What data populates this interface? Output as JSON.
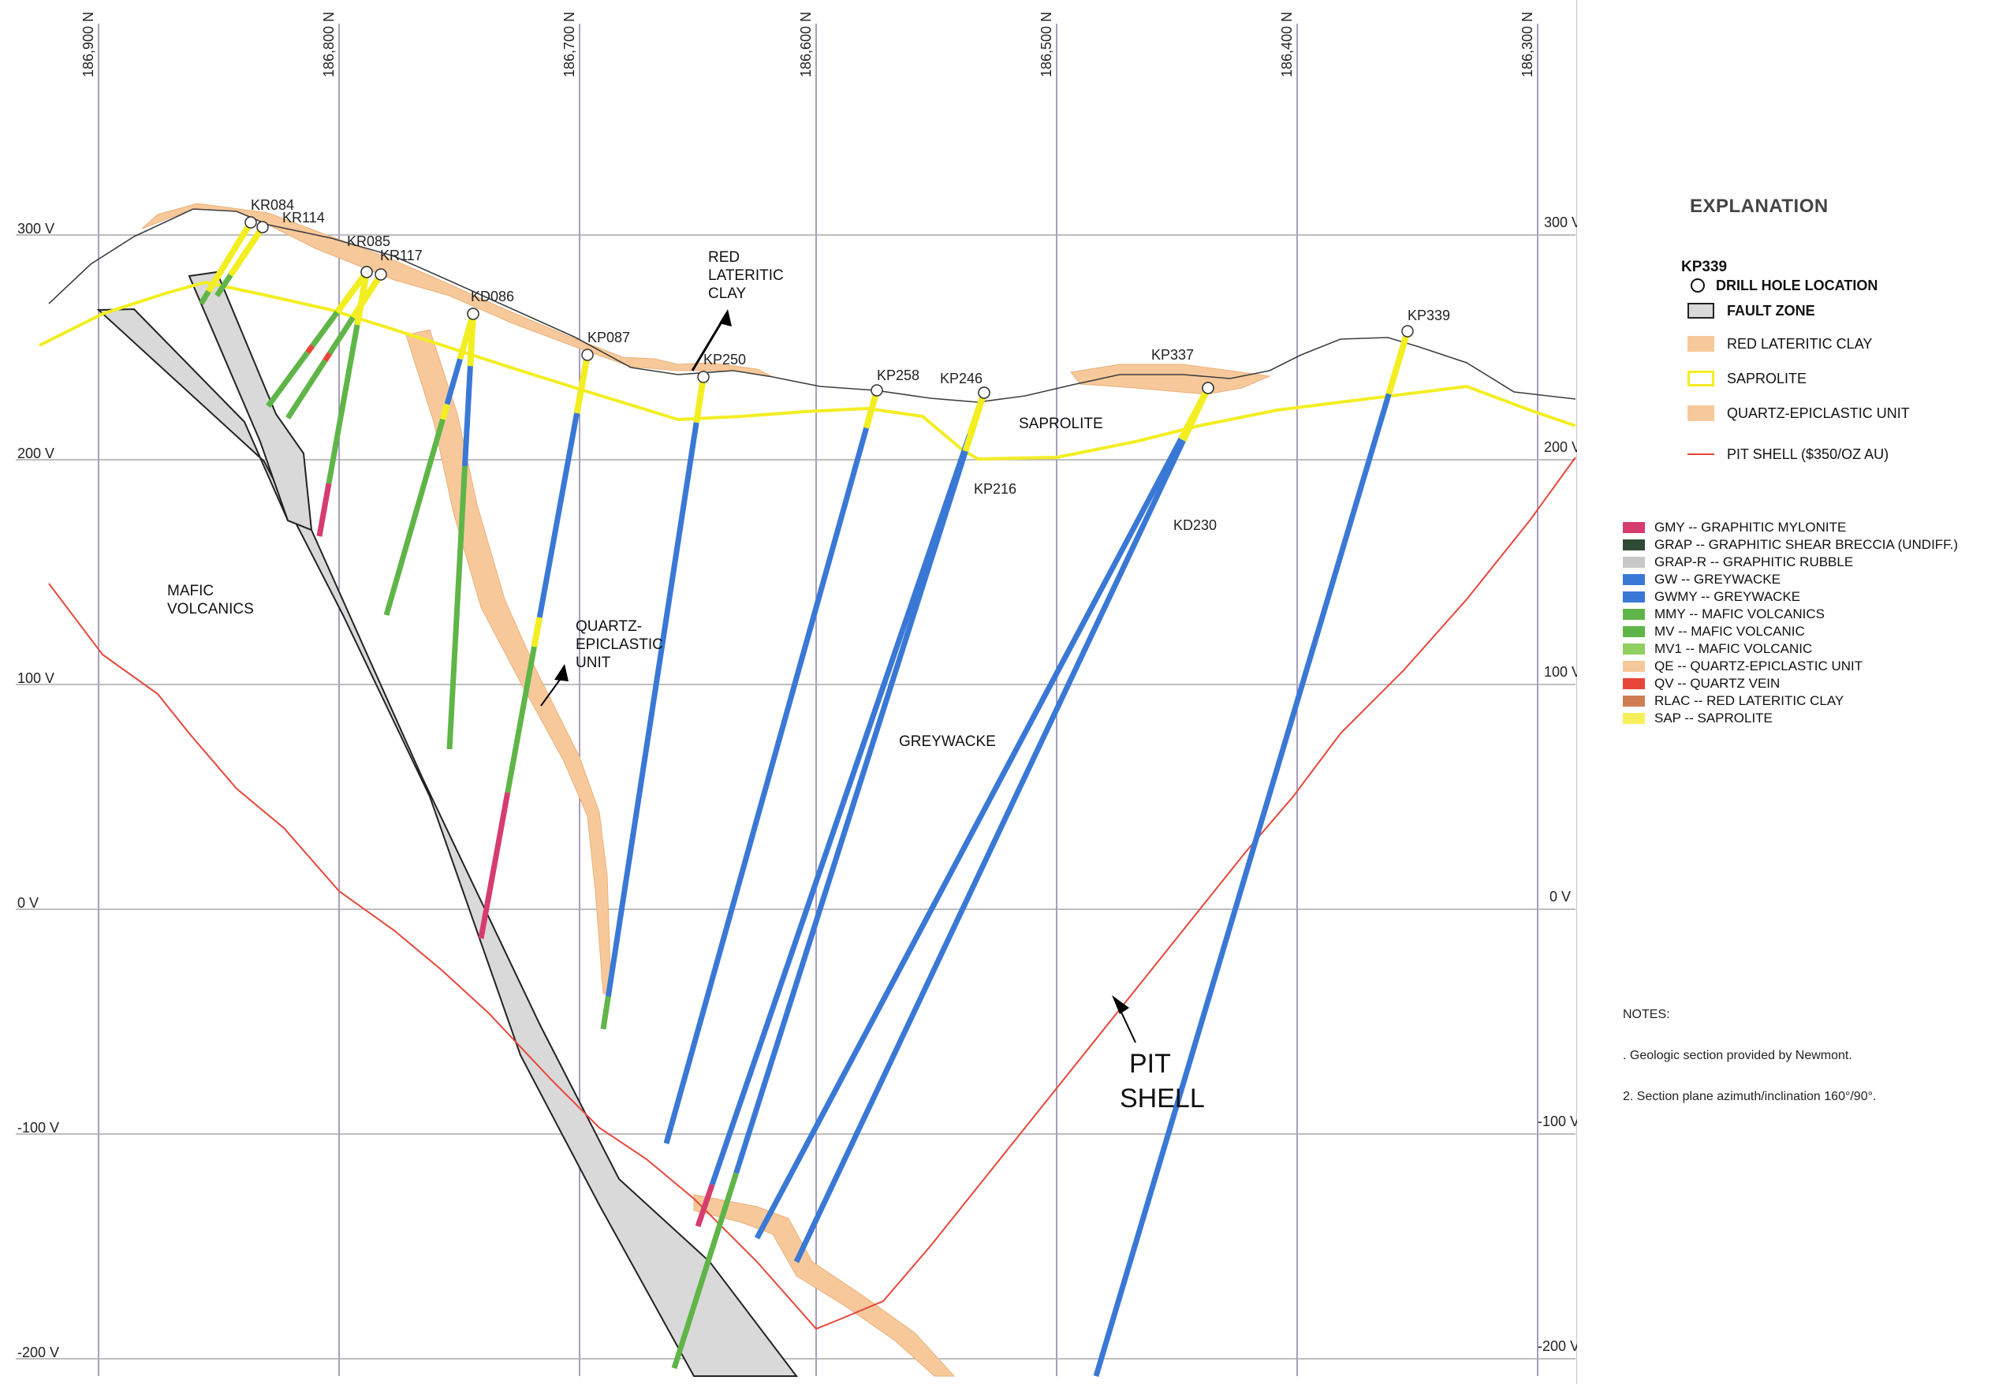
{
  "grid": {
    "northings": [
      "186,900 N",
      "186,800 N",
      "186,700 N",
      "186,600 N",
      "186,500 N",
      "186,400 N",
      "186,300 N"
    ],
    "elevations_left": [
      "300 V",
      "200 V",
      "100 V",
      "0 V",
      "-100 V",
      "-200 V"
    ],
    "elevations_right": [
      "300 V",
      "200 V",
      "100 V",
      "0 V",
      "-100 V",
      "-200 V"
    ]
  },
  "drill_holes": [
    "KR084",
    "KR114",
    "KR085",
    "KR117",
    "KD086",
    "KP087",
    "KP250",
    "KP258",
    "KP246",
    "KP216",
    "KP337",
    "KD230",
    "KP339"
  ],
  "annotations": {
    "red_lateritic_clay": [
      "RED",
      "LATERITIC",
      "CLAY"
    ],
    "quartz_epiclastic_unit": [
      "QUARTZ-",
      "EPICLASTIC",
      "UNIT"
    ],
    "mafic_volcanics": [
      "MAFIC",
      "VOLCANICS"
    ],
    "saprolite": "SAPROLITE",
    "greywacke": "GREYWACKE",
    "pit_shell": [
      "PIT",
      "SHELL"
    ]
  },
  "legend": {
    "title": "EXPLANATION",
    "drill_hole_example": "KP339",
    "symbols": [
      {
        "label": "DRILL HOLE LOCATION",
        "kind": "circle"
      },
      {
        "label": "FAULT ZONE",
        "kind": "fault",
        "color": "#d9d9d9"
      },
      {
        "label": "RED LATERITIC CLAY",
        "kind": "fill",
        "color": "#f7c99a"
      },
      {
        "label": "SAPROLITE",
        "kind": "outline",
        "color": "#f2ee22"
      },
      {
        "label": "QUARTZ-EPICLASTIC UNIT",
        "kind": "fill",
        "color": "#f7c99a"
      },
      {
        "label": "PIT SHELL ($350/OZ AU)",
        "kind": "line",
        "color": "#e8463a"
      }
    ],
    "lithology": [
      {
        "label": "GMY -- GRAPHITIC MYLONITE",
        "color": "#d63c6e"
      },
      {
        "label": "GRAP -- GRAPHITIC SHEAR BRECCIA (UNDIFF.)",
        "color": "#2f4a36"
      },
      {
        "label": "GRAP-R -- GRAPHITIC RUBBLE",
        "color": "#c8c8c8"
      },
      {
        "label": "GW -- GREYWACKE",
        "color": "#3a78d6"
      },
      {
        "label": "GWMY -- GREYWACKE",
        "color": "#3a78d6"
      },
      {
        "label": "MMY -- MAFIC VOLCANICS",
        "color": "#5fb548"
      },
      {
        "label": "MV -- MAFIC VOLCANIC",
        "color": "#5fb548"
      },
      {
        "label": "MV1 -- MAFIC VOLCANIC",
        "color": "#8fd060"
      },
      {
        "label": "QE -- QUARTZ-EPICLASTIC UNIT",
        "color": "#f7c99a"
      },
      {
        "label": "QV -- QUARTZ VEIN",
        "color": "#e8463a"
      },
      {
        "label": "RLAC -- RED LATERITIC CLAY",
        "color": "#cf7d52"
      },
      {
        "label": "SAP -- SAPROLITE",
        "color": "#f5f05a"
      }
    ],
    "notes_title": "NOTES:",
    "notes": [
      ". Geologic section provided by Newmont.",
      "2. Section plane azimuth/inclination 160°/90°."
    ]
  },
  "colors": {
    "clay": "#f7c99a",
    "saprolite": "#f2ee22",
    "greywacke": "#3a78d6",
    "mafic": "#5fb548",
    "mylonite": "#d63c6e",
    "pit_shell": "#e8463a",
    "fault": "#d9d9d9"
  }
}
